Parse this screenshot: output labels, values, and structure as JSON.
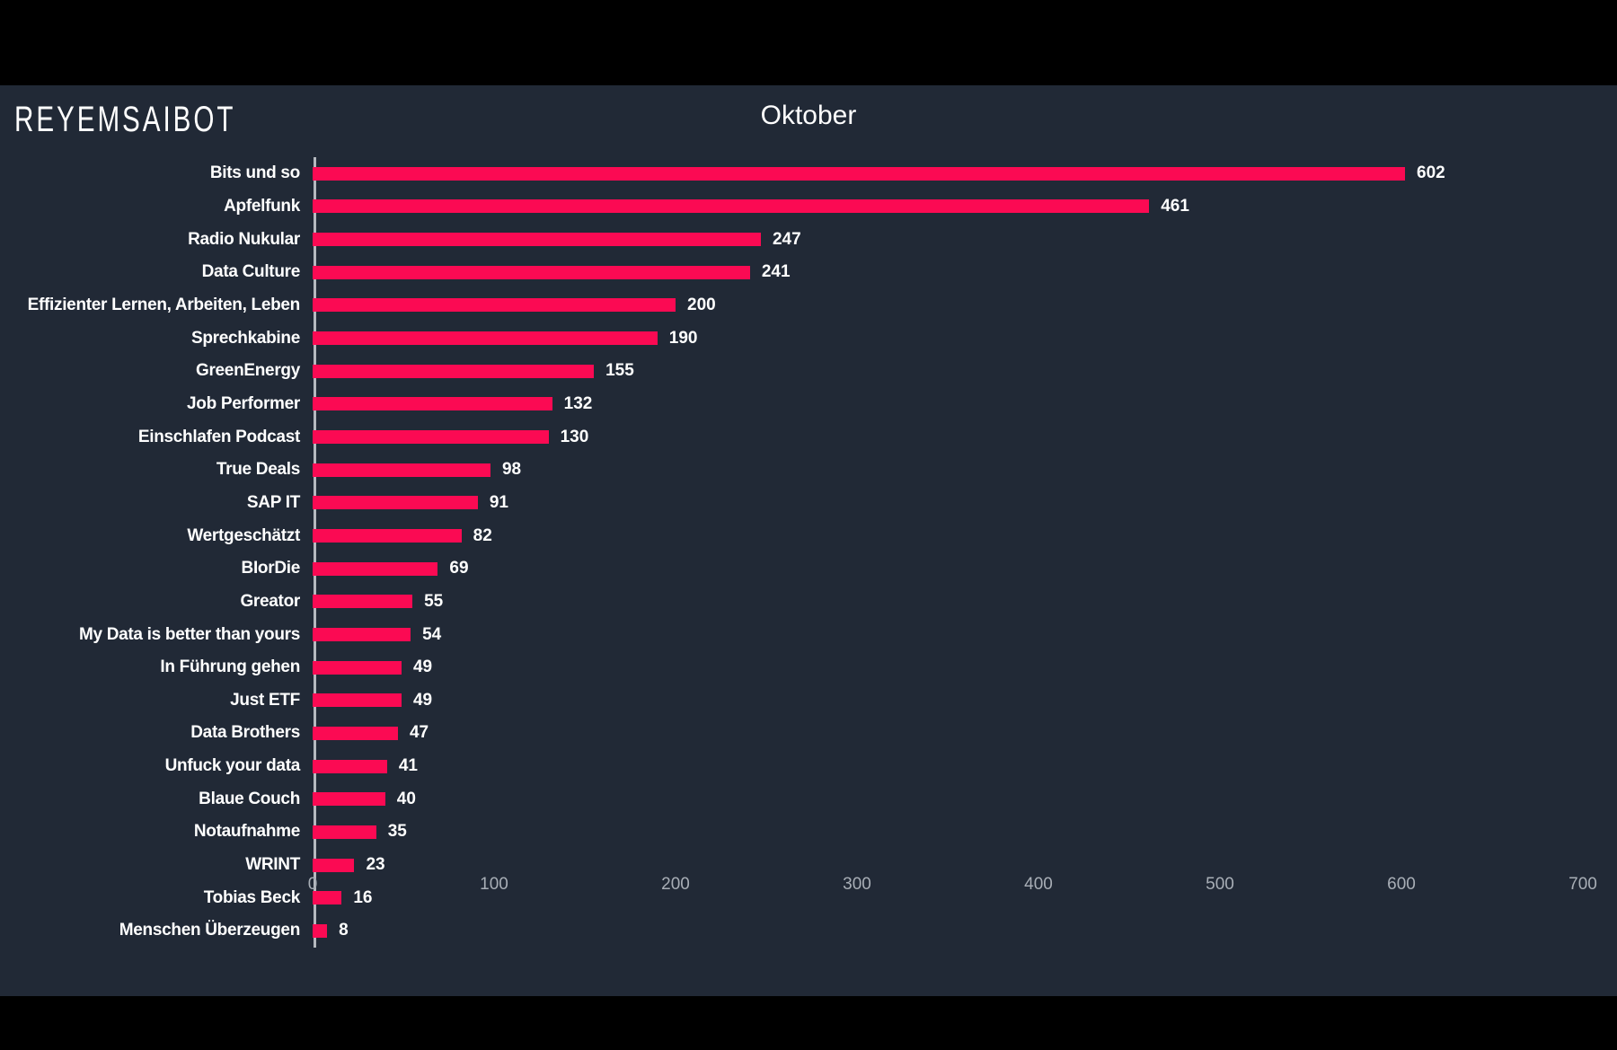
{
  "brand": {
    "logo_text": "REYEMSAIBOT"
  },
  "chart_data": {
    "type": "bar",
    "orientation": "horizontal",
    "title": "Oktober",
    "categories": [
      "Bits und so",
      "Apfelfunk",
      "Radio Nukular",
      "Data Culture",
      "Effizienter Lernen, Arbeiten, Leben",
      "Sprechkabine",
      "GreenEnergy",
      "Job Performer",
      "Einschlafen Podcast",
      "True Deals",
      "SAP IT",
      "Wertgeschätzt",
      "BIorDie",
      "Greator",
      "My Data is better than yours",
      "In Führung gehen",
      "Just ETF",
      "Data Brothers",
      "Unfuck your data",
      "Blaue Couch",
      "Notaufnahme",
      "WRINT",
      "Tobias Beck",
      "Menschen Überzeugen"
    ],
    "values": [
      602,
      461,
      247,
      241,
      200,
      190,
      155,
      132,
      130,
      98,
      91,
      82,
      69,
      55,
      54,
      49,
      49,
      47,
      41,
      40,
      35,
      23,
      16,
      8
    ],
    "xlabel": "",
    "ylabel": "",
    "xlim": [
      0,
      700
    ],
    "x_ticks": [
      "0",
      "100",
      "200",
      "300",
      "400",
      "500",
      "600",
      "700"
    ],
    "grid": false,
    "legend": false,
    "value_labels": true,
    "sort": "descending"
  },
  "colors": {
    "page_background": "#000000",
    "canvas_background": "#212936",
    "bar": "#FB0A53",
    "text": "#FFFFFF",
    "tick_label": "#A8AEB6",
    "axis_line": "#B5B9BF"
  }
}
